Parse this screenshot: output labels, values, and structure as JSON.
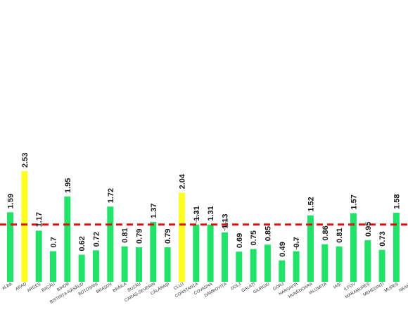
{
  "chart_data": {
    "type": "bar",
    "title": "",
    "xlabel": "",
    "ylabel": "",
    "ylim": [
      0,
      2.6
    ],
    "grid": false,
    "legend": "none",
    "categories": [
      "ALBA",
      "ARAD",
      "ARGEȘ",
      "BACĂU",
      "BIHOR",
      "BISTRIȚA-NĂSĂUD",
      "BOTOȘANI",
      "BRAȘOV",
      "BRĂILA",
      "BUZĂU",
      "CARAȘ-SEVERIN",
      "CĂLĂRAȘI",
      "CLUJ",
      "CONSTANȚA",
      "COVASNA",
      "DÂMBOVIȚA",
      "DOLJ",
      "GALAȚI",
      "GIURGIU",
      "GORJ",
      "HARGHITA",
      "HUNEDOARA",
      "IALOMIȚA",
      "IAȘI",
      "ILFOV",
      "MARAMUREȘ",
      "MEHEDINȚI",
      "MUREȘ",
      "NEAMȚ"
    ],
    "values": [
      1.59,
      2.53,
      1.17,
      0.7,
      1.95,
      0.62,
      0.72,
      1.72,
      0.81,
      0.79,
      1.37,
      0.79,
      2.04,
      1.31,
      1.31,
      1.13,
      0.69,
      0.75,
      0.85,
      0.49,
      0.7,
      1.52,
      0.86,
      0.81,
      1.57,
      0.95,
      0.73,
      1.58,
      null
    ],
    "labels": [
      "1.59",
      "2.53",
      "1.17",
      "0.7",
      "1.95",
      "0.62",
      "0.72",
      "1.72",
      "0.81",
      "0.79",
      "1.37",
      "0.79",
      "2.04",
      "1.31",
      "1.31",
      "1.13",
      "0.69",
      "0.75",
      "0.85",
      "0.49",
      "0.7",
      "1.52",
      "0.86",
      "0.81",
      "1.57",
      "0.95",
      "0.73",
      "1.58",
      ""
    ],
    "highlighted": [
      "ARAD",
      "CLUJ"
    ],
    "reference_line": {
      "value": 1.31,
      "style": "dashed"
    },
    "colors": {
      "bar": "#22e36a",
      "highlight": "#ffff22",
      "reference": "#dd1111"
    }
  }
}
